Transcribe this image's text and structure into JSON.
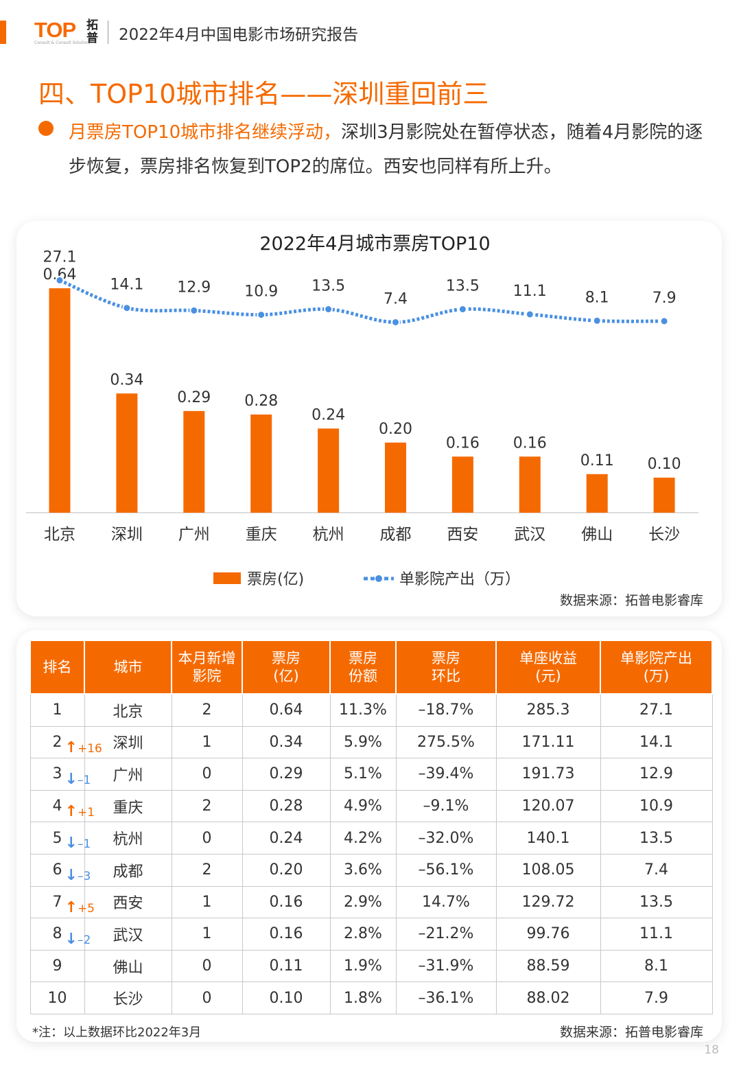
{
  "header": {
    "logo_text": "TOP",
    "logo_subtitle": "Consult & Consult Solution",
    "logo_cn": "拓普",
    "report_title": "2022年4月中国电影市场研究报告"
  },
  "section": {
    "title": "四、TOP10城市排名——深圳重回前三",
    "highlight": "月票房TOP10城市排名继续浮动，",
    "body": "深圳3月影院处在暂停状态，随着4月影院的逐步恢复，票房排名恢复到TOP2的席位。西安也同样有所上升。"
  },
  "colors": {
    "accent": "#f56a00",
    "line": "#4a90e2"
  },
  "chart_data": {
    "type": "bar",
    "title": "2022年4月城市票房TOP10",
    "categories": [
      "北京",
      "深圳",
      "广州",
      "重庆",
      "杭州",
      "成都",
      "西安",
      "武汉",
      "佛山",
      "长沙"
    ],
    "series": [
      {
        "name": "票房(亿)",
        "type": "bar",
        "values": [
          0.64,
          0.34,
          0.29,
          0.28,
          0.24,
          0.2,
          0.16,
          0.16,
          0.11,
          0.1
        ],
        "labels": [
          "0.64",
          "0.34",
          "0.29",
          "0.28",
          "0.24",
          "0.20",
          "0.16",
          "0.16",
          "0.11",
          "0.10"
        ]
      },
      {
        "name": "单影院产出（万）",
        "type": "line",
        "values": [
          27.1,
          14.1,
          12.9,
          10.9,
          13.5,
          7.4,
          13.5,
          11.1,
          8.1,
          7.9
        ],
        "labels": [
          "27.1",
          "14.1",
          "12.9",
          "10.9",
          "13.5",
          "7.4",
          "13.5",
          "11.1",
          "8.1",
          "7.9"
        ]
      }
    ],
    "legend_position": "bottom",
    "source": "数据来源：拓普电影睿库"
  },
  "table": {
    "headers": [
      [
        "排名"
      ],
      [
        "城市"
      ],
      [
        "本月新增",
        "影院"
      ],
      [
        "票房",
        "(亿)"
      ],
      [
        "票房",
        "份额"
      ],
      [
        "票房",
        "环比"
      ],
      [
        "单座收益",
        "(元)"
      ],
      [
        "单影院产出",
        "(万)"
      ]
    ],
    "rows": [
      {
        "rank": "1",
        "change": "",
        "dir": "",
        "city": "北京",
        "new": "2",
        "box": "0.64",
        "share": "11.3%",
        "mom": "–18.7%",
        "seat": "285.3",
        "output": "27.1"
      },
      {
        "rank": "2",
        "change": "+16",
        "dir": "up",
        "city": "深圳",
        "new": "1",
        "box": "0.34",
        "share": "5.9%",
        "mom": "275.5%",
        "seat": "171.11",
        "output": "14.1"
      },
      {
        "rank": "3",
        "change": "–1",
        "dir": "down",
        "city": "广州",
        "new": "0",
        "box": "0.29",
        "share": "5.1%",
        "mom": "–39.4%",
        "seat": "191.73",
        "output": "12.9"
      },
      {
        "rank": "4",
        "change": "+1",
        "dir": "up",
        "city": "重庆",
        "new": "2",
        "box": "0.28",
        "share": "4.9%",
        "mom": "–9.1%",
        "seat": "120.07",
        "output": "10.9"
      },
      {
        "rank": "5",
        "change": "–1",
        "dir": "down",
        "city": "杭州",
        "new": "0",
        "box": "0.24",
        "share": "4.2%",
        "mom": "–32.0%",
        "seat": "140.1",
        "output": "13.5"
      },
      {
        "rank": "6",
        "change": "–3",
        "dir": "down",
        "city": "成都",
        "new": "2",
        "box": "0.20",
        "share": "3.6%",
        "mom": "–56.1%",
        "seat": "108.05",
        "output": "7.4"
      },
      {
        "rank": "7",
        "change": "+5",
        "dir": "up",
        "city": "西安",
        "new": "1",
        "box": "0.16",
        "share": "2.9%",
        "mom": "14.7%",
        "seat": "129.72",
        "output": "13.5"
      },
      {
        "rank": "8",
        "change": "–2",
        "dir": "down",
        "city": "武汉",
        "new": "1",
        "box": "0.16",
        "share": "2.8%",
        "mom": "–21.2%",
        "seat": "99.76",
        "output": "11.1"
      },
      {
        "rank": "9",
        "change": "",
        "dir": "",
        "city": "佛山",
        "new": "0",
        "box": "0.11",
        "share": "1.9%",
        "mom": "–31.9%",
        "seat": "88.59",
        "output": "8.1"
      },
      {
        "rank": "10",
        "change": "",
        "dir": "",
        "city": "长沙",
        "new": "0",
        "box": "0.10",
        "share": "1.8%",
        "mom": "–36.1%",
        "seat": "88.02",
        "output": "7.9"
      }
    ],
    "note": "*注：以上数据环比2022年3月",
    "source": "数据来源：拓普电影睿库"
  },
  "page_number": "18"
}
